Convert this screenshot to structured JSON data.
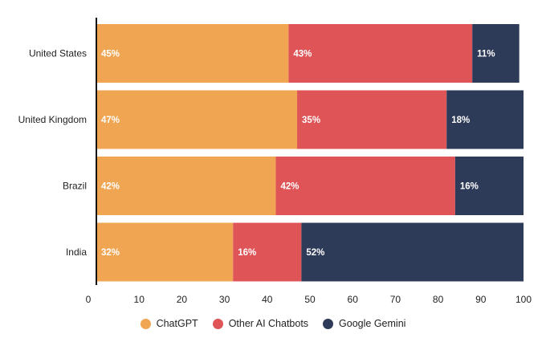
{
  "chart_data": {
    "type": "bar",
    "orientation": "horizontal",
    "stacked": true,
    "title": "",
    "xlabel": "",
    "ylabel": "",
    "categories": [
      "United States",
      "United Kingdom",
      "Brazil",
      "India"
    ],
    "series": [
      {
        "name": "ChatGPT",
        "color": "#F0A552",
        "values": [
          45,
          47,
          42,
          32
        ],
        "labels": [
          "45%",
          "47%",
          "42%",
          "32%"
        ]
      },
      {
        "name": "Other AI Chatbots",
        "color": "#DE5457",
        "values": [
          43,
          35,
          42,
          16
        ],
        "labels": [
          "43%",
          "35%",
          "42%",
          "16%"
        ]
      },
      {
        "name": "Google Gemini",
        "color": "#2E3B58",
        "values": [
          11,
          18,
          16,
          52
        ],
        "labels": [
          "11%",
          "18%",
          "16%",
          "52%"
        ]
      }
    ],
    "xlim": [
      0,
      100
    ],
    "xticks": [
      0,
      10,
      20,
      30,
      40,
      50,
      60,
      70,
      80,
      90,
      100
    ],
    "xtick_labels": [
      "0",
      "10",
      "20",
      "30",
      "40",
      "50",
      "60",
      "70",
      "80",
      "90",
      "100"
    ],
    "grid": false,
    "legend_position": "bottom"
  }
}
